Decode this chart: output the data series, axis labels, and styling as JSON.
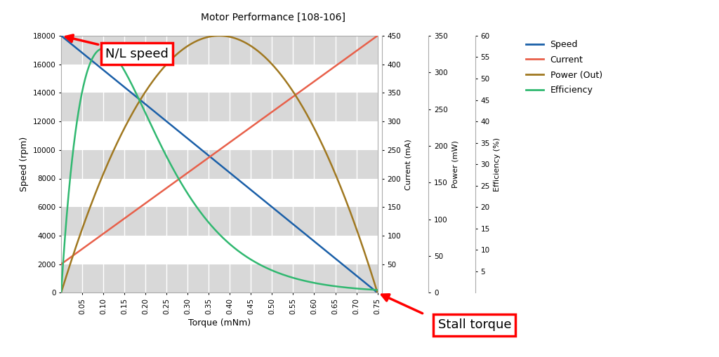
{
  "title": "Motor Performance [108-106]",
  "xlabel": "Torque (mNm)",
  "ylabel_speed": "Speed (rpm)",
  "ylabel_current": "Current (mA)",
  "ylabel_power": "Power (mW)",
  "ylabel_efficiency": "Efficiency (%)",
  "stall_torque": 0.75,
  "no_load_speed": 18000,
  "speed_color": "#1a5fa8",
  "current_color": "#e8604a",
  "power_color": "#a07820",
  "efficiency_color": "#30b870",
  "torque_ticks": [
    0.05,
    0.1,
    0.15,
    0.2,
    0.25,
    0.3,
    0.35,
    0.4,
    0.45,
    0.5,
    0.55,
    0.6,
    0.65,
    0.7,
    0.75
  ],
  "speed_yticks": [
    0,
    2000,
    4000,
    6000,
    8000,
    10000,
    12000,
    14000,
    16000,
    18000
  ],
  "current_yticks": [
    50,
    100,
    150,
    200,
    250,
    300,
    350,
    400,
    450
  ],
  "power_yticks": [
    0,
    50,
    100,
    150,
    200,
    250,
    300,
    350
  ],
  "efficiency_yticks": [
    5,
    10,
    15,
    20,
    25,
    30,
    35,
    40,
    45,
    50,
    55,
    60
  ],
  "speed_ylim": [
    0,
    18000
  ],
  "current_ylim": [
    0,
    450
  ],
  "power_ylim": [
    0,
    350
  ],
  "efficiency_ylim": [
    0,
    60
  ],
  "annotation_nl_speed": "N/L speed",
  "annotation_stall": "Stall torque",
  "legend_labels": [
    "Speed",
    "Current",
    "Power (Out)",
    "Efficiency"
  ],
  "band_color": "#d8d8d8",
  "grid_color": "#ffffff"
}
